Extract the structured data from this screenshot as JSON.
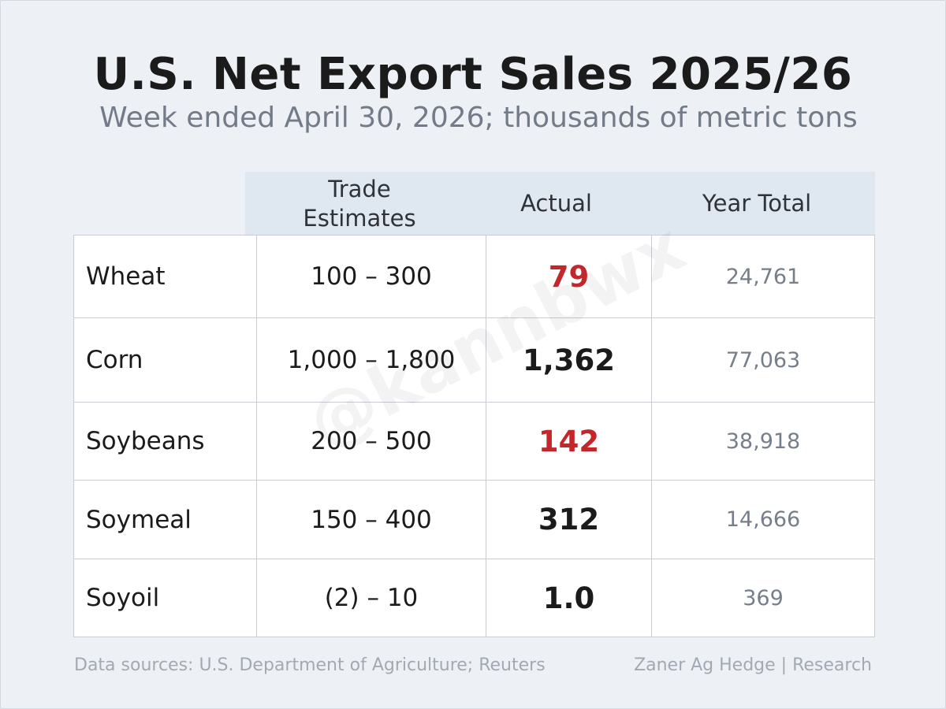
{
  "title": "U.S. Net Export Sales 2025/26",
  "subtitle": "Week ended April 30, 2026; thousands of metric tons",
  "watermark": "@kannbwx",
  "colors": {
    "background": "#edf1f6",
    "header_band": "#dfe7f0",
    "below_estimate": "#c3272b",
    "text": "#1b1b1b",
    "muted": "#767e8a"
  },
  "chart_data": {
    "type": "table",
    "title": "U.S. Net Export Sales 2025/26",
    "subtitle": "Week ended April 30, 2026; thousands of metric tons",
    "columns": [
      "",
      "Trade Estimates",
      "Actual",
      "Year Total"
    ],
    "header_lines": {
      "estimate": [
        "Trade",
        "Estimates"
      ],
      "actual": "Actual",
      "total": "Year Total"
    },
    "rows": [
      {
        "commodity": "Wheat",
        "estimate": "100 – 300",
        "actual": "79",
        "total": "24,761",
        "below_estimate": true
      },
      {
        "commodity": "Corn",
        "estimate": "1,000 – 1,800",
        "actual": "1,362",
        "total": "77,063",
        "below_estimate": false
      },
      {
        "commodity": "Soybeans",
        "estimate": "200 – 500",
        "actual": "142",
        "total": "38,918",
        "below_estimate": true
      },
      {
        "commodity": "Soymeal",
        "estimate": "150 – 400",
        "actual": "312",
        "total": "14,666",
        "below_estimate": false
      },
      {
        "commodity": "Soyoil",
        "estimate": "(2) – 10",
        "actual": "1.0",
        "total": "369",
        "below_estimate": false
      }
    ]
  },
  "footer": {
    "source": "Data sources: U.S. Department of Agriculture; Reuters",
    "credit": "Zaner Ag Hedge | Research"
  }
}
